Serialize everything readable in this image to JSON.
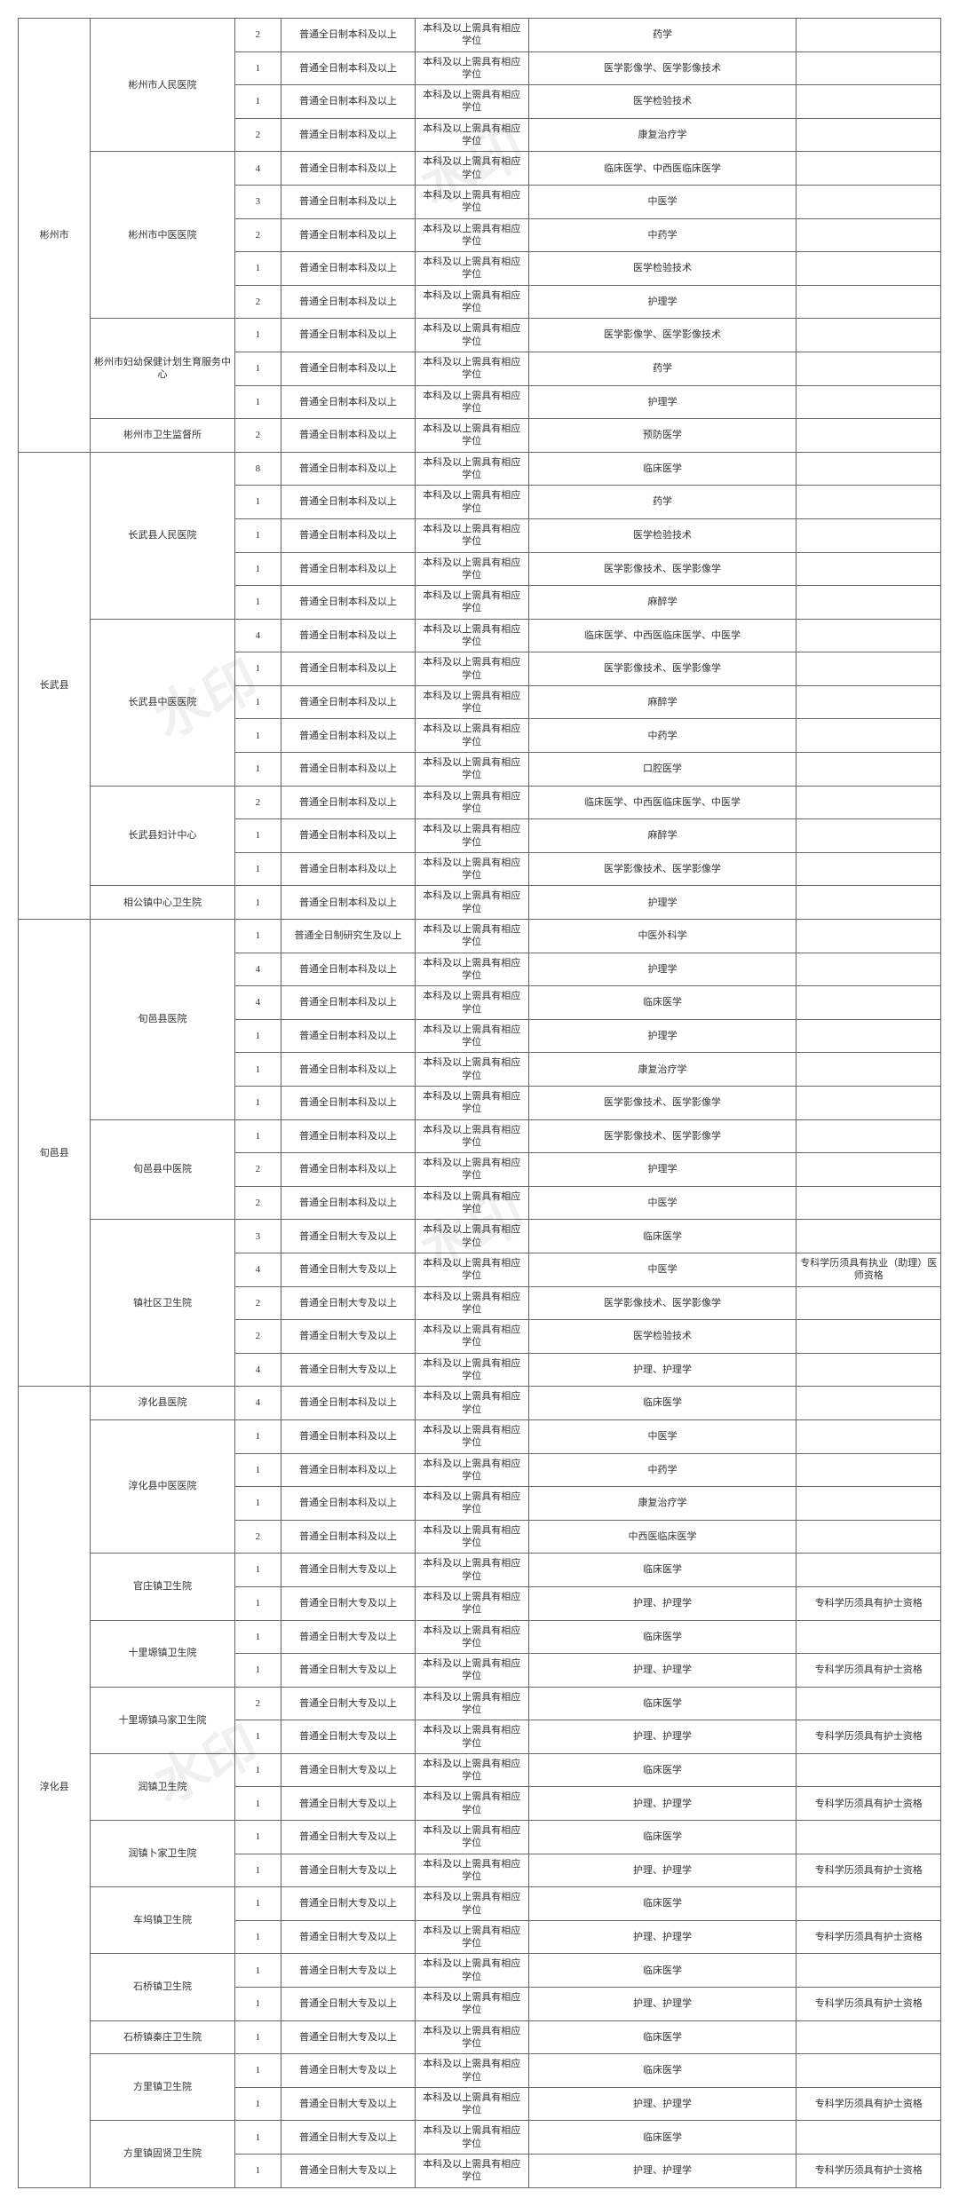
{
  "edu1": "普通全日制本科及以上",
  "edu2": "普通全日制大专及以上",
  "edu3": "普通全日制研究生及以上",
  "deg": "本科及以上需具有相应学位",
  "remark1": "专科学历须具有执业（助理）医师资格",
  "remark2": "专科学历须具有护士资格",
  "groups": [
    {
      "region": "彬州市",
      "orgs": [
        {
          "name": "彬州市人民医院",
          "rows": [
            {
              "n": 2,
              "e": 1,
              "m": "药学"
            },
            {
              "n": 1,
              "e": 1,
              "m": "医学影像学、医学影像技术"
            },
            {
              "n": 1,
              "e": 1,
              "m": "医学检验技术"
            },
            {
              "n": 2,
              "e": 1,
              "m": "康复治疗学"
            }
          ]
        },
        {
          "name": "彬州市中医医院",
          "rows": [
            {
              "n": 4,
              "e": 1,
              "m": "临床医学、中西医临床医学"
            },
            {
              "n": 3,
              "e": 1,
              "m": "中医学"
            },
            {
              "n": 2,
              "e": 1,
              "m": "中药学"
            },
            {
              "n": 1,
              "e": 1,
              "m": "医学检验技术"
            },
            {
              "n": 2,
              "e": 1,
              "m": "护理学"
            }
          ]
        },
        {
          "name": "彬州市妇幼保健计划生育服务中心",
          "rows": [
            {
              "n": 1,
              "e": 1,
              "m": "医学影像学、医学影像技术"
            },
            {
              "n": 1,
              "e": 1,
              "m": "药学"
            },
            {
              "n": 1,
              "e": 1,
              "m": "护理学"
            }
          ]
        },
        {
          "name": "彬州市卫生监督所",
          "rows": [
            {
              "n": 2,
              "e": 1,
              "m": "预防医学"
            }
          ]
        }
      ]
    },
    {
      "region": "长武县",
      "orgs": [
        {
          "name": "长武县人民医院",
          "rows": [
            {
              "n": 8,
              "e": 1,
              "m": "临床医学"
            },
            {
              "n": 1,
              "e": 1,
              "m": "药学"
            },
            {
              "n": 1,
              "e": 1,
              "m": "医学检验技术"
            },
            {
              "n": 1,
              "e": 1,
              "m": "医学影像技术、医学影像学"
            },
            {
              "n": 1,
              "e": 1,
              "m": "麻醉学"
            }
          ]
        },
        {
          "name": "长武县中医医院",
          "rows": [
            {
              "n": 4,
              "e": 1,
              "m": "临床医学、中西医临床医学、中医学"
            },
            {
              "n": 1,
              "e": 1,
              "m": "医学影像技术、医学影像学"
            },
            {
              "n": 1,
              "e": 1,
              "m": "麻醉学"
            },
            {
              "n": 1,
              "e": 1,
              "m": "中药学"
            },
            {
              "n": 1,
              "e": 1,
              "m": "口腔医学"
            }
          ]
        },
        {
          "name": "长武县妇计中心",
          "rows": [
            {
              "n": 2,
              "e": 1,
              "m": "临床医学、中西医临床医学、中医学"
            },
            {
              "n": 1,
              "e": 1,
              "m": "麻醉学"
            },
            {
              "n": 1,
              "e": 1,
              "m": "医学影像技术、医学影像学"
            }
          ]
        },
        {
          "name": "相公镇中心卫生院",
          "rows": [
            {
              "n": 1,
              "e": 1,
              "m": "护理学"
            }
          ]
        }
      ]
    },
    {
      "region": "旬邑县",
      "orgs": [
        {
          "name": "旬邑县医院",
          "rows": [
            {
              "n": 1,
              "e": 3,
              "m": "中医外科学"
            },
            {
              "n": 4,
              "e": 1,
              "m": "护理学"
            },
            {
              "n": 4,
              "e": 1,
              "m": "临床医学"
            },
            {
              "n": 1,
              "e": 1,
              "m": "护理学"
            },
            {
              "n": 1,
              "e": 1,
              "m": "康复治疗学"
            },
            {
              "n": 1,
              "e": 1,
              "m": "医学影像技术、医学影像学"
            }
          ]
        },
        {
          "name": "旬邑县中医院",
          "rows": [
            {
              "n": 1,
              "e": 1,
              "m": "医学影像技术、医学影像学"
            },
            {
              "n": 2,
              "e": 1,
              "m": "护理学"
            },
            {
              "n": 2,
              "e": 1,
              "m": "中医学"
            }
          ]
        },
        {
          "name": "镇社区卫生院",
          "rows": [
            {
              "n": 3,
              "e": 2,
              "m": "临床医学"
            },
            {
              "n": 4,
              "e": 2,
              "m": "中医学",
              "r": 1
            },
            {
              "n": 2,
              "e": 2,
              "m": "医学影像技术、医学影像学"
            },
            {
              "n": 2,
              "e": 2,
              "m": "医学检验技术"
            },
            {
              "n": 4,
              "e": 2,
              "m": "护理、护理学"
            }
          ]
        }
      ]
    },
    {
      "region": "淳化县",
      "orgs": [
        {
          "name": "淳化县医院",
          "rows": [
            {
              "n": 4,
              "e": 1,
              "m": "临床医学"
            }
          ]
        },
        {
          "name": "淳化县中医医院",
          "rows": [
            {
              "n": 1,
              "e": 1,
              "m": "中医学"
            },
            {
              "n": 1,
              "e": 1,
              "m": "中药学"
            },
            {
              "n": 1,
              "e": 1,
              "m": "康复治疗学"
            },
            {
              "n": 2,
              "e": 1,
              "m": "中西医临床医学"
            }
          ]
        },
        {
          "name": "官庄镇卫生院",
          "rows": [
            {
              "n": 1,
              "e": 2,
              "m": "临床医学"
            },
            {
              "n": 1,
              "e": 2,
              "m": "护理、护理学",
              "r": 2
            }
          ]
        },
        {
          "name": "十里塬镇卫生院",
          "rows": [
            {
              "n": 1,
              "e": 2,
              "m": "临床医学"
            },
            {
              "n": 1,
              "e": 2,
              "m": "护理、护理学",
              "r": 2
            }
          ]
        },
        {
          "name": "十里塬镇马家卫生院",
          "rows": [
            {
              "n": 2,
              "e": 2,
              "m": "临床医学"
            },
            {
              "n": 1,
              "e": 2,
              "m": "护理、护理学",
              "r": 2
            }
          ]
        },
        {
          "name": "润镇卫生院",
          "rows": [
            {
              "n": 1,
              "e": 2,
              "m": "临床医学"
            },
            {
              "n": 1,
              "e": 2,
              "m": "护理、护理学",
              "r": 2
            }
          ]
        },
        {
          "name": "润镇卜家卫生院",
          "rows": [
            {
              "n": 1,
              "e": 2,
              "m": "临床医学"
            },
            {
              "n": 1,
              "e": 2,
              "m": "护理、护理学",
              "r": 2
            }
          ]
        },
        {
          "name": "车坞镇卫生院",
          "rows": [
            {
              "n": 1,
              "e": 2,
              "m": "临床医学"
            },
            {
              "n": 1,
              "e": 2,
              "m": "护理、护理学",
              "r": 2
            }
          ]
        },
        {
          "name": "石桥镇卫生院",
          "rows": [
            {
              "n": 1,
              "e": 2,
              "m": "临床医学"
            },
            {
              "n": 1,
              "e": 2,
              "m": "护理、护理学",
              "r": 2
            }
          ]
        },
        {
          "name": "石桥镇秦庄卫生院",
          "rows": [
            {
              "n": 1,
              "e": 2,
              "m": "临床医学"
            }
          ]
        },
        {
          "name": "方里镇卫生院",
          "rows": [
            {
              "n": 1,
              "e": 2,
              "m": "临床医学"
            },
            {
              "n": 1,
              "e": 2,
              "m": "护理、护理学",
              "r": 2
            }
          ]
        },
        {
          "name": "方里镇固贤卫生院",
          "rows": [
            {
              "n": 1,
              "e": 2,
              "m": "临床医学"
            },
            {
              "n": 1,
              "e": 2,
              "m": "护理、护理学",
              "r": 2
            }
          ]
        }
      ]
    }
  ],
  "wm": "水印"
}
